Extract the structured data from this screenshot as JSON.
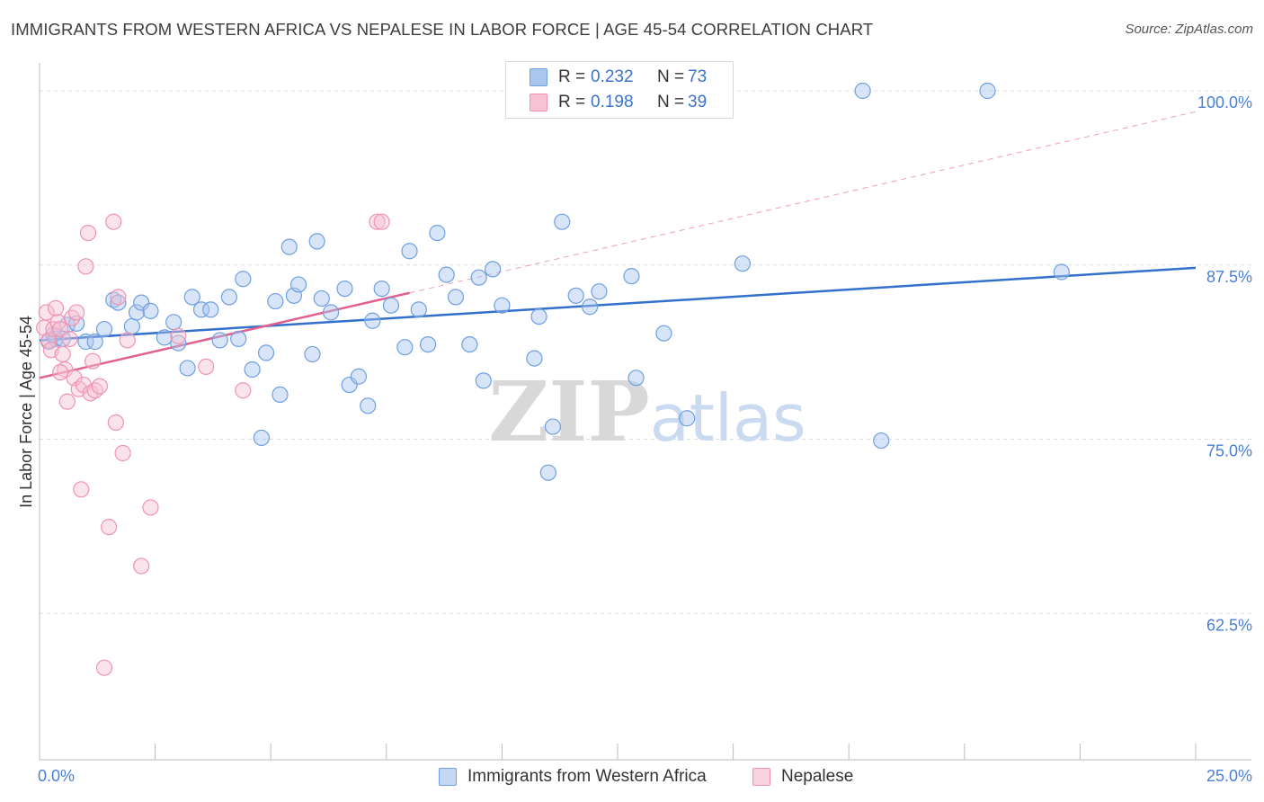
{
  "chart_data": {
    "type": "scatter",
    "title": "IMMIGRANTS FROM WESTERN AFRICA VS NEPALESE IN LABOR FORCE | AGE 45-54 CORRELATION CHART",
    "source": "Source: ZipAtlas.com",
    "xlabel": "",
    "ylabel": "In Labor Force | Age 45-54",
    "xlim": [
      0,
      25
    ],
    "ylim": [
      52.0,
      102.0
    ],
    "x_tick_labels": [
      "0.0%",
      "25.0%"
    ],
    "y_ticks": [
      62.5,
      75.0,
      87.5,
      100.0
    ],
    "y_tick_labels": [
      "62.5%",
      "75.0%",
      "87.5%",
      "100.0%"
    ],
    "watermark": "ZIPatlas",
    "legend": {
      "entries": [
        {
          "r_label": "R =",
          "r_value": "0.232",
          "n_label": "N =",
          "n_value": "73"
        },
        {
          "r_label": "R =",
          "r_value": "0.198",
          "n_label": "N =",
          "n_value": "39"
        }
      ]
    },
    "series": [
      {
        "name": "Immigrants from Western Africa",
        "color": "#6f9fe0",
        "fill": "#a9c6ef",
        "line_color": "#3370cc",
        "trend": {
          "x": [
            0.0,
            25.0
          ],
          "y": [
            82.1,
            87.3
          ]
        },
        "points": [
          [
            0.2,
            82.0
          ],
          [
            0.3,
            82.5
          ],
          [
            0.35,
            82.2
          ],
          [
            0.5,
            82.2
          ],
          [
            0.6,
            83.2
          ],
          [
            0.8,
            83.3
          ],
          [
            1.0,
            82.0
          ],
          [
            1.2,
            82.0
          ],
          [
            1.4,
            82.9
          ],
          [
            1.6,
            85.0
          ],
          [
            1.7,
            84.8
          ],
          [
            2.0,
            83.1
          ],
          [
            2.1,
            84.1
          ],
          [
            2.2,
            84.8
          ],
          [
            2.4,
            84.2
          ],
          [
            2.7,
            82.3
          ],
          [
            2.9,
            83.4
          ],
          [
            3.0,
            81.9
          ],
          [
            3.2,
            80.1
          ],
          [
            3.3,
            85.2
          ],
          [
            3.5,
            84.3
          ],
          [
            3.7,
            84.3
          ],
          [
            3.9,
            82.1
          ],
          [
            4.1,
            85.2
          ],
          [
            4.3,
            82.2
          ],
          [
            4.4,
            86.5
          ],
          [
            4.6,
            80.0
          ],
          [
            4.8,
            75.1
          ],
          [
            4.9,
            81.2
          ],
          [
            5.1,
            84.9
          ],
          [
            5.2,
            78.2
          ],
          [
            5.4,
            88.8
          ],
          [
            5.5,
            85.3
          ],
          [
            5.6,
            86.1
          ],
          [
            5.9,
            81.1
          ],
          [
            6.0,
            89.2
          ],
          [
            6.1,
            85.1
          ],
          [
            6.3,
            84.1
          ],
          [
            6.6,
            85.8
          ],
          [
            6.7,
            78.9
          ],
          [
            6.9,
            79.5
          ],
          [
            7.1,
            77.4
          ],
          [
            7.2,
            83.5
          ],
          [
            7.4,
            85.8
          ],
          [
            7.6,
            84.6
          ],
          [
            7.9,
            81.6
          ],
          [
            8.0,
            88.5
          ],
          [
            8.2,
            84.3
          ],
          [
            8.4,
            81.8
          ],
          [
            8.6,
            89.8
          ],
          [
            8.8,
            86.8
          ],
          [
            9.0,
            85.2
          ],
          [
            9.3,
            81.8
          ],
          [
            9.5,
            86.6
          ],
          [
            9.6,
            79.2
          ],
          [
            9.8,
            87.2
          ],
          [
            10.0,
            84.6
          ],
          [
            10.7,
            80.8
          ],
          [
            10.8,
            83.8
          ],
          [
            11.0,
            72.6
          ],
          [
            11.1,
            75.9
          ],
          [
            11.3,
            90.6
          ],
          [
            11.6,
            85.3
          ],
          [
            11.9,
            84.5
          ],
          [
            12.1,
            85.6
          ],
          [
            12.8,
            86.7
          ],
          [
            12.9,
            79.4
          ],
          [
            13.5,
            82.6
          ],
          [
            14.0,
            76.5
          ],
          [
            15.2,
            87.6
          ],
          [
            17.8,
            100.0
          ],
          [
            18.2,
            74.9
          ],
          [
            20.5,
            100.0
          ],
          [
            22.1,
            87.0
          ]
        ]
      },
      {
        "name": "Nepalese",
        "color": "#ef93b1",
        "fill": "#f7c2d3",
        "line_color": "#e0608f",
        "trend": {
          "x": [
            0.0,
            8.0
          ],
          "y": [
            79.4,
            85.5
          ]
        },
        "trend_dashed": {
          "x": [
            8.0,
            25.0
          ],
          "y": [
            85.5,
            98.5
          ]
        },
        "points": [
          [
            0.1,
            83.0
          ],
          [
            0.15,
            84.1
          ],
          [
            0.2,
            82.1
          ],
          [
            0.25,
            81.4
          ],
          [
            0.3,
            82.9
          ],
          [
            0.35,
            84.4
          ],
          [
            0.4,
            83.4
          ],
          [
            0.45,
            82.9
          ],
          [
            0.5,
            81.1
          ],
          [
            0.55,
            80.0
          ],
          [
            0.6,
            77.7
          ],
          [
            0.65,
            82.2
          ],
          [
            0.7,
            83.7
          ],
          [
            0.75,
            79.4
          ],
          [
            0.8,
            84.1
          ],
          [
            0.85,
            78.6
          ],
          [
            0.9,
            71.4
          ],
          [
            0.95,
            78.9
          ],
          [
            1.0,
            87.4
          ],
          [
            1.05,
            89.8
          ],
          [
            1.1,
            78.3
          ],
          [
            1.15,
            80.6
          ],
          [
            1.2,
            78.5
          ],
          [
            1.3,
            78.8
          ],
          [
            1.4,
            58.6
          ],
          [
            1.5,
            68.7
          ],
          [
            1.6,
            90.6
          ],
          [
            1.65,
            76.2
          ],
          [
            1.7,
            85.2
          ],
          [
            1.8,
            74.0
          ],
          [
            1.9,
            82.1
          ],
          [
            2.2,
            65.9
          ],
          [
            2.4,
            70.1
          ],
          [
            3.0,
            82.4
          ],
          [
            3.6,
            80.2
          ],
          [
            4.4,
            78.5
          ],
          [
            7.3,
            90.6
          ],
          [
            7.4,
            90.6
          ],
          [
            0.45,
            79.8
          ]
        ]
      }
    ]
  },
  "legend_bottom": [
    "Immigrants from Western Africa",
    "Nepalese"
  ]
}
